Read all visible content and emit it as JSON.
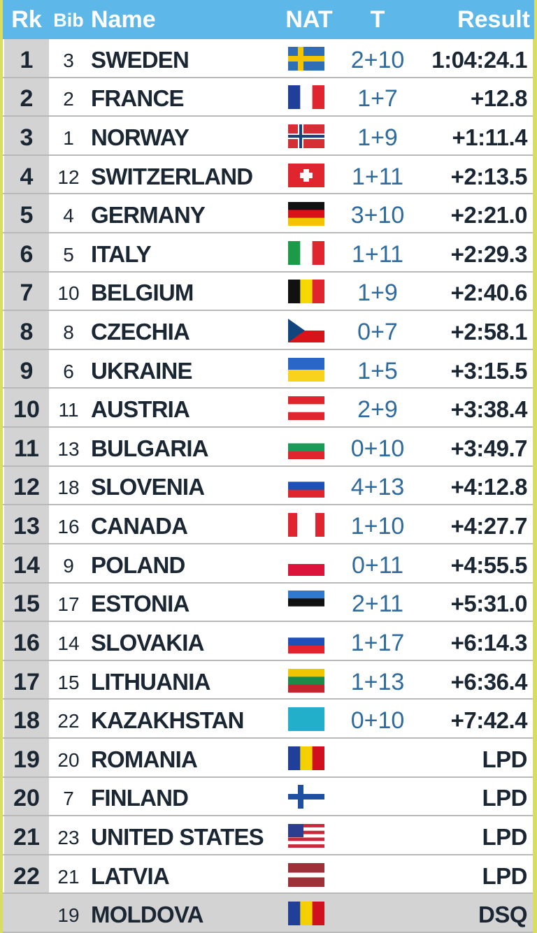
{
  "header": {
    "rk": "Rk",
    "bib": "Bib",
    "name": "Name",
    "nat": "NAT",
    "t": "T",
    "result": "Result"
  },
  "rows": [
    {
      "rk": 1,
      "bib": 3,
      "name": "SWEDEN",
      "t": "2+10",
      "result": "1:04:24.1"
    },
    {
      "rk": 2,
      "bib": 2,
      "name": "FRANCE",
      "t": "1+7",
      "result": "+12.8"
    },
    {
      "rk": 3,
      "bib": 1,
      "name": "NORWAY",
      "t": "1+9",
      "result": "+1:11.4"
    },
    {
      "rk": 4,
      "bib": 12,
      "name": "SWITZERLAND",
      "t": "1+11",
      "result": "+2:13.5"
    },
    {
      "rk": 5,
      "bib": 4,
      "name": "GERMANY",
      "t": "3+10",
      "result": "+2:21.0"
    },
    {
      "rk": 6,
      "bib": 5,
      "name": "ITALY",
      "t": "1+11",
      "result": "+2:29.3"
    },
    {
      "rk": 7,
      "bib": 10,
      "name": "BELGIUM",
      "t": "1+9",
      "result": "+2:40.6"
    },
    {
      "rk": 8,
      "bib": 8,
      "name": "CZECHIA",
      "t": "0+7",
      "result": "+2:58.1"
    },
    {
      "rk": 9,
      "bib": 6,
      "name": "UKRAINE",
      "t": "1+5",
      "result": "+3:15.5"
    },
    {
      "rk": 10,
      "bib": 11,
      "name": "AUSTRIA",
      "t": "2+9",
      "result": "+3:38.4"
    },
    {
      "rk": 11,
      "bib": 13,
      "name": "BULGARIA",
      "t": "0+10",
      "result": "+3:49.7"
    },
    {
      "rk": 12,
      "bib": 18,
      "name": "SLOVENIA",
      "t": "4+13",
      "result": "+4:12.8"
    },
    {
      "rk": 13,
      "bib": 16,
      "name": "CANADA",
      "t": "1+10",
      "result": "+4:27.7"
    },
    {
      "rk": 14,
      "bib": 9,
      "name": "POLAND",
      "t": "0+11",
      "result": "+4:55.5"
    },
    {
      "rk": 15,
      "bib": 17,
      "name": "ESTONIA",
      "t": "2+11",
      "result": "+5:31.0"
    },
    {
      "rk": 16,
      "bib": 14,
      "name": "SLOVAKIA",
      "t": "1+17",
      "result": "+6:14.3"
    },
    {
      "rk": 17,
      "bib": 15,
      "name": "LITHUANIA",
      "t": "1+13",
      "result": "+6:36.4"
    },
    {
      "rk": 18,
      "bib": 22,
      "name": "KAZAKHSTAN",
      "t": "0+10",
      "result": "+7:42.4"
    },
    {
      "rk": 19,
      "bib": 20,
      "name": "ROMANIA",
      "result": "LPD"
    },
    {
      "rk": 20,
      "bib": 7,
      "name": "FINLAND",
      "result": "LPD"
    },
    {
      "rk": 21,
      "bib": 23,
      "name": "UNITED STATES",
      "result": "LPD"
    },
    {
      "rk": 22,
      "bib": 21,
      "name": "LATVIA",
      "result": "LPD"
    },
    {
      "bib": 19,
      "name": "MOLDOVA",
      "result": "DSQ"
    }
  ]
}
